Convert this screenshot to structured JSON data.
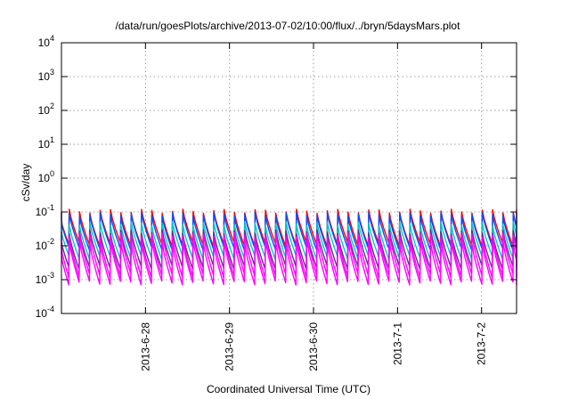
{
  "chart_data": {
    "type": "line",
    "title": "/data/run/goesPlots/archive/2013-07-02/10:00/flux/../bryn/5daysMars.plot",
    "xlabel": "Coordinated Universal Time (UTC)",
    "ylabel": "cSv/day",
    "yscale": "log",
    "ylim": [
      0.0001,
      10000
    ],
    "yticks": [
      {
        "value": 0.0001,
        "base": "10",
        "exp": "-4"
      },
      {
        "value": 0.001,
        "base": "10",
        "exp": "-3"
      },
      {
        "value": 0.01,
        "base": "10",
        "exp": "-2"
      },
      {
        "value": 0.1,
        "base": "10",
        "exp": "-1"
      },
      {
        "value": 1,
        "base": "10",
        "exp": "0"
      },
      {
        "value": 10,
        "base": "10",
        "exp": "1"
      },
      {
        "value": 100,
        "base": "10",
        "exp": "2"
      },
      {
        "value": 1000,
        "base": "10",
        "exp": "3"
      },
      {
        "value": 10000,
        "base": "10",
        "exp": "4"
      }
    ],
    "xlim": [
      "2013-06-27T00:00",
      "2013-07-02T10:00"
    ],
    "xticks": [
      {
        "value": "2013-06-28T00:00",
        "label": "2013-6-28"
      },
      {
        "value": "2013-06-29T00:00",
        "label": "2013-6-29"
      },
      {
        "value": "2013-06-30T00:00",
        "label": "2013-6-30"
      },
      {
        "value": "2013-07-01T00:00",
        "label": "2013-7-1"
      },
      {
        "value": "2013-07-02T00:00",
        "label": "2013-7-2"
      }
    ],
    "grid": true,
    "legend": "none",
    "cycle_hours": 2.95,
    "series": [
      {
        "color": "#ff0000",
        "peak": 0.105,
        "trough": 0.011
      },
      {
        "color": "#0050ff",
        "peak": 0.085,
        "trough": 0.0085
      },
      {
        "color": "#00c8c8",
        "peak": 0.045,
        "trough": 0.0045
      },
      {
        "color": "#5a2f8a",
        "peak": 0.026,
        "trough": 0.0023
      },
      {
        "color": "#ff00ff",
        "peak": 0.021,
        "trough": 0.0013
      },
      {
        "color": "#ff00ff",
        "peak": 0.013,
        "trough": 0.0008
      }
    ]
  }
}
